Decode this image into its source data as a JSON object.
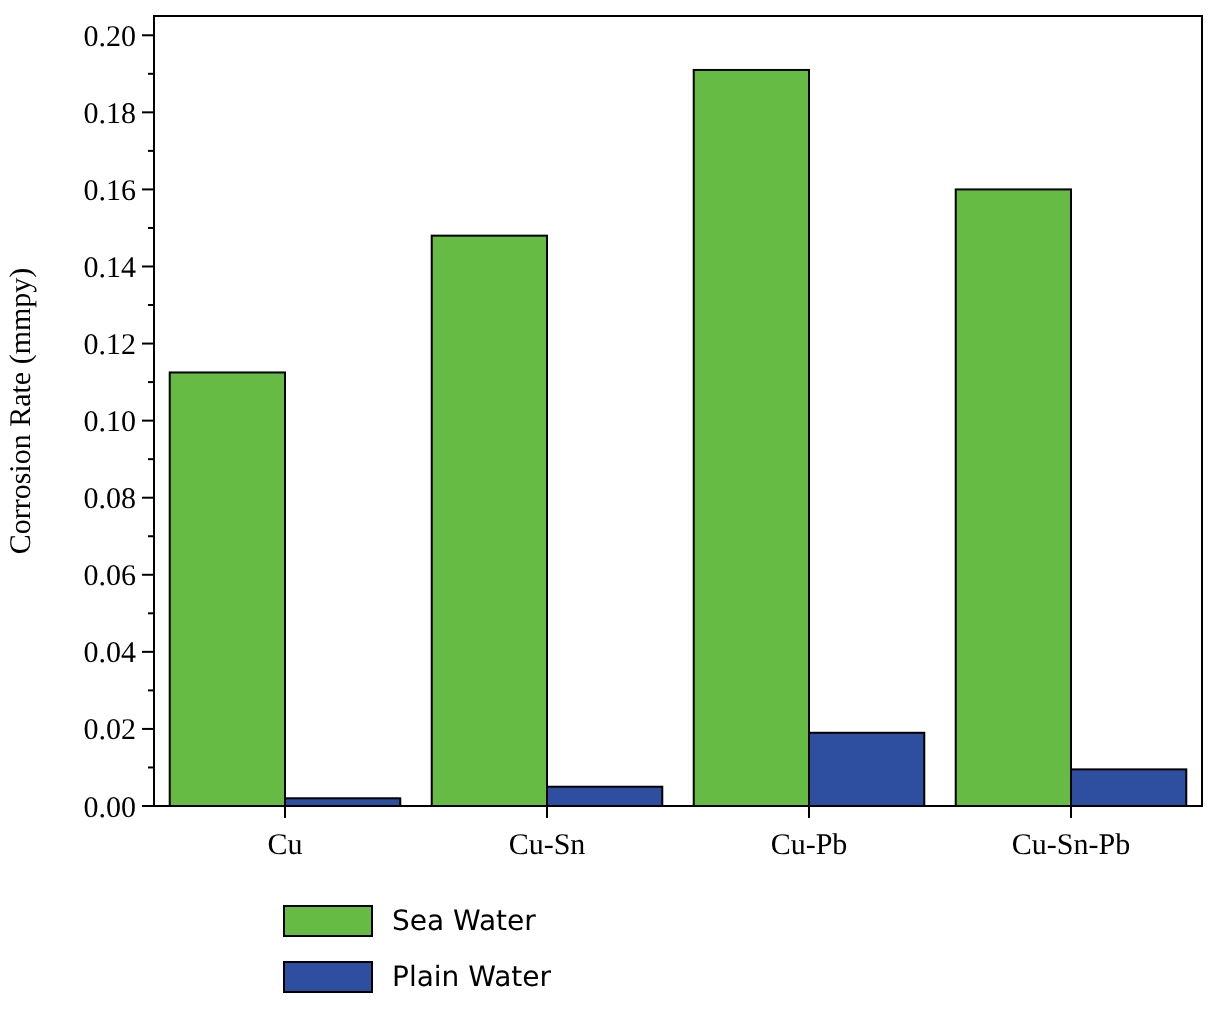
{
  "chart_data": {
    "type": "bar",
    "ylabel": "Corrosion Rate (mmpy)",
    "categories": [
      "Cu",
      "Cu-Sn",
      "Cu-Pb",
      "Cu-Sn-Pb"
    ],
    "series": [
      {
        "name": "Sea Water",
        "color": "#66bb44",
        "values": [
          0.1125,
          0.148,
          0.191,
          0.16
        ]
      },
      {
        "name": "Plain Water",
        "color": "#2e4fa0",
        "values": [
          0.002,
          0.005,
          0.019,
          0.0095
        ]
      }
    ],
    "ylim": [
      0,
      0.205
    ],
    "yticks": [
      {
        "value": 0,
        "label": "0.00"
      },
      {
        "value": 0.02,
        "label": "0.02"
      },
      {
        "value": 0.04,
        "label": "0.04"
      },
      {
        "value": 0.06,
        "label": "0.06"
      },
      {
        "value": 0.08,
        "label": "0.08"
      },
      {
        "value": 0.1,
        "label": "0.10"
      },
      {
        "value": 0.12,
        "label": "0.12"
      },
      {
        "value": 0.14,
        "label": "0.14"
      },
      {
        "value": 0.16,
        "label": "0.16"
      },
      {
        "value": 0.18,
        "label": "0.18"
      },
      {
        "value": 0.2,
        "label": "0.20"
      }
    ],
    "grid": false,
    "legend": "bottom"
  }
}
